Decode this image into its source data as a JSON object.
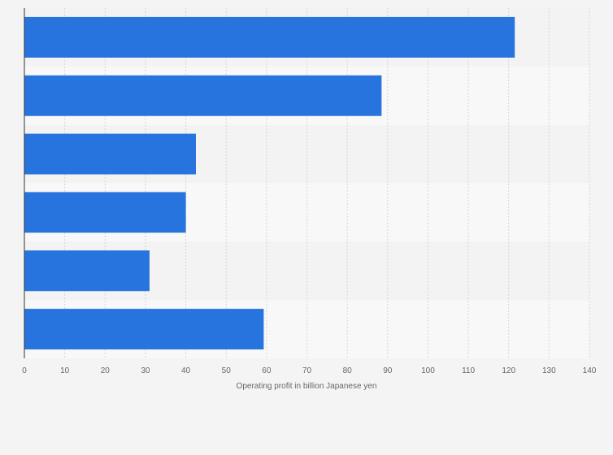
{
  "chart_data": {
    "type": "bar",
    "orientation": "horizontal",
    "categories": [
      "",
      "",
      "",
      "",
      "",
      ""
    ],
    "values": [
      121.5,
      88.5,
      42.5,
      40.0,
      31.0,
      59.3
    ],
    "xlabel": "Operating profit in billion Japanese yen",
    "ylabel": "",
    "xlim": [
      0,
      140
    ],
    "xticks": [
      0,
      10,
      20,
      30,
      40,
      50,
      60,
      70,
      80,
      90,
      100,
      110,
      120,
      130,
      140
    ],
    "grid": true,
    "legend": "none",
    "colors": {
      "bar": "#2774de",
      "band_dark": "#f3f3f3",
      "band_light": "#f8f8f8",
      "grid": "#d6d6d6",
      "axis": "#333333",
      "tick_text": "#666666"
    }
  }
}
